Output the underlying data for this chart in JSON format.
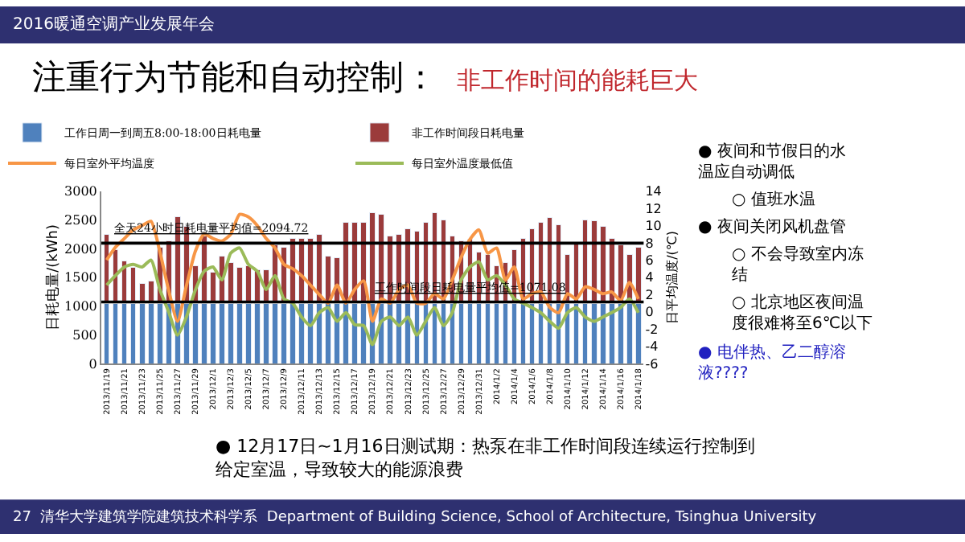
{
  "chart_data": {
    "type": "bar",
    "stacked": true,
    "title": "注重行为节能和自动控制：",
    "subtitle": "非工作时间的能耗巨大",
    "ylabel": "日耗电量/(kWh)",
    "y2label": "日平均温度/(℃)",
    "categories": [
      "2013/11/19",
      null,
      "2013/11/21",
      null,
      "2013/11/23",
      null,
      "2013/11/25",
      null,
      "2013/11/27",
      null,
      "2013/11/29",
      null,
      "2013/12/1",
      null,
      "2013/12/3",
      null,
      "2013/12/5",
      null,
      "2013/12/7",
      null,
      "2013/12/9",
      null,
      "2013/12/11",
      null,
      "2013/12/13",
      null,
      "2013/12/15",
      null,
      "2013/12/17",
      null,
      "2013/12/19",
      null,
      "2013/12/21",
      null,
      "2013/12/23",
      null,
      "2013/12/25",
      null,
      "2013/12/27",
      null,
      "2013/12/29",
      null,
      "2013/12/31",
      null,
      "2014/1/2",
      null,
      "2014/1/4",
      null,
      "2014/1/6",
      null,
      "2014/1/8",
      null,
      "2014/1/10",
      null,
      "2014/1/12",
      null,
      "2014/1/14",
      null,
      "2014/1/16",
      null,
      "2014/1/18"
    ],
    "series": [
      {
        "name": "工作日周一到周五8:00-18:00日耗电量",
        "color": "#4f81bd",
        "values": [
          1050,
          1050,
          1050,
          1050,
          1050,
          1050,
          1050,
          1050,
          1050,
          1050,
          1050,
          1050,
          1050,
          1050,
          1050,
          1050,
          1050,
          1050,
          1050,
          1050,
          1050,
          1050,
          1050,
          1050,
          1050,
          1050,
          1050,
          1050,
          1050,
          1050,
          1050,
          1050,
          1050,
          1050,
          1050,
          1050,
          1050,
          1050,
          1050,
          1050,
          1050,
          1050,
          1050,
          1050,
          1050,
          1050,
          1050,
          1050,
          1050,
          1050,
          1050,
          1050,
          1050,
          1050,
          1050,
          1050,
          1050,
          1050,
          1050,
          1050,
          1050
        ]
      },
      {
        "name": "非工作时间段日耗电量",
        "color": "#9b3b3b",
        "values": [
          1200,
          930,
          740,
          620,
          340,
          390,
          970,
          1090,
          1510,
          1330,
          650,
          1170,
          540,
          820,
          700,
          620,
          650,
          580,
          580,
          1010,
          970,
          1130,
          1130,
          1130,
          1200,
          820,
          790,
          1410,
          1410,
          1410,
          1570,
          1550,
          1170,
          1190,
          1290,
          1250,
          1410,
          1570,
          1450,
          1170,
          1090,
          1110,
          890,
          850,
          650,
          700,
          930,
          1130,
          1290,
          1410,
          1490,
          1370,
          850,
          1050,
          1450,
          1430,
          1330,
          1130,
          1010,
          850,
          970
        ]
      },
      {
        "name": "每日室外平均温度",
        "type": "line",
        "axis": "y2",
        "color": "#f79646",
        "values": [
          6.0,
          7.5,
          8.5,
          9.5,
          10.0,
          10.5,
          7.0,
          2.5,
          -1.1,
          3.0,
          7.0,
          9.0,
          8.5,
          8.2,
          9.0,
          11.3,
          11.0,
          10.0,
          8.5,
          7.4,
          5.5,
          5.0,
          4.2,
          3.1,
          2.0,
          1.0,
          3.1,
          1.0,
          2.6,
          3.6,
          -1.1,
          1.5,
          1.0,
          2.6,
          3.1,
          1.0,
          1.0,
          2.1,
          1.5,
          3.7,
          6.3,
          8.4,
          9.5,
          6.8,
          7.4,
          3.7,
          5.2,
          1.5,
          2.1,
          2.3,
          0.5,
          -0.1,
          2.1,
          1.5,
          2.9,
          2.6,
          2.1,
          2.3,
          1.3,
          3.4,
          1.5
        ]
      },
      {
        "name": "每日室外温度最低值",
        "type": "line",
        "axis": "y2",
        "color": "#9bbb59",
        "values": [
          3.1,
          4.2,
          5.2,
          5.5,
          5.2,
          6.0,
          2.6,
          0.0,
          -2.7,
          -0.6,
          2.5,
          4.7,
          5.2,
          3.7,
          6.8,
          7.4,
          5.5,
          4.7,
          2.6,
          4.2,
          1.5,
          1.0,
          -0.6,
          -1.6,
          -0.1,
          0.5,
          -1.1,
          -0.1,
          -1.5,
          -1.6,
          -3.8,
          -1.1,
          -0.6,
          -1.6,
          -0.6,
          -2.7,
          -1.1,
          0.5,
          -1.6,
          -0.1,
          3.7,
          5.2,
          5.8,
          3.7,
          4.2,
          3.1,
          1.5,
          1.0,
          0.5,
          -0.1,
          -1.1,
          -1.9,
          -0.1,
          0.5,
          -0.6,
          -1.1,
          -0.6,
          -0.1,
          0.5,
          1.5,
          -0.1
        ]
      }
    ],
    "ylim": [
      0,
      3000
    ],
    "yticks": [
      0,
      500,
      1000,
      1500,
      2000,
      2500,
      3000
    ],
    "y2lim": [
      -6,
      14
    ],
    "y2ticks": [
      -6,
      -4,
      -2,
      0,
      2,
      4,
      6,
      8,
      10,
      12,
      14
    ],
    "ref_lines": [
      {
        "axis": "y",
        "value": 2094.72,
        "label": "全天24小时日耗电量平均值=2094.72",
        "color": "#000000"
      },
      {
        "axis": "y",
        "value": 1071.08,
        "label": "工作时间段日耗电量平均值=1071.08",
        "color": "#000000"
      }
    ],
    "legend": "top",
    "annotations": [
      "2016暖通空调产业发展年会",
      "● 夜间和节假日的水温应自动调低",
      "○ 值班水温",
      "● 夜间关闭风机盘管",
      "○ 不会导致室内冻结",
      "○ 北京地区夜间温度很难将至6℃以下",
      "● 电伴热、乙二醇溶液????",
      "● 12月17日~1月16日测试期：热泵在非工作时间段连续运行控制到给定室温，导致较大的能源浪费",
      "27  清华大学建筑学院建筑技术科学系  Department of Building Science, School of Architecture, Tsinghua University"
    ]
  }
}
